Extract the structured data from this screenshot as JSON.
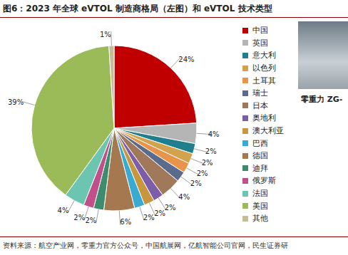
{
  "chart_data": {
    "type": "pie",
    "title": "图6：2023 年全球 eVTOL 制造商格局（左图）和 eVTOL 技术类型",
    "source": "资料来源：航空产业网，零重力官方公众号，中国航展网，亿航智能公司官网，民生证券研",
    "image_caption": "零重力 ZG-",
    "categories": [
      "中国",
      "英国",
      "意大利",
      "以色列",
      "土耳其",
      "瑞士",
      "日本",
      "奥地利",
      "澳大利亚",
      "巴西",
      "德国",
      "迪拜",
      "俄罗斯",
      "法国",
      "美国",
      "其他"
    ],
    "values": [
      24,
      4,
      2,
      2,
      2,
      2,
      4,
      2,
      2,
      2,
      6,
      2,
      2,
      4,
      39,
      1
    ],
    "value_labels": [
      "24%",
      "4%",
      "2%",
      "2%",
      "2%",
      "2%",
      "4%",
      "2%",
      "2%",
      "2%",
      "6%",
      "2%",
      "2%",
      "4%",
      "39%",
      "1%"
    ],
    "colors": [
      "#C00000",
      "#B5B5B5",
      "#1F7F8C",
      "#D4A24C",
      "#E8954B",
      "#5A6B8C",
      "#A0785A",
      "#7B5EA7",
      "#C8963E",
      "#3AABD0",
      "#A67850",
      "#3D8C6E",
      "#C0508A",
      "#6CC5B0",
      "#9BBB59",
      "#C4BD97"
    ],
    "data_labels": true,
    "legend": "right"
  }
}
